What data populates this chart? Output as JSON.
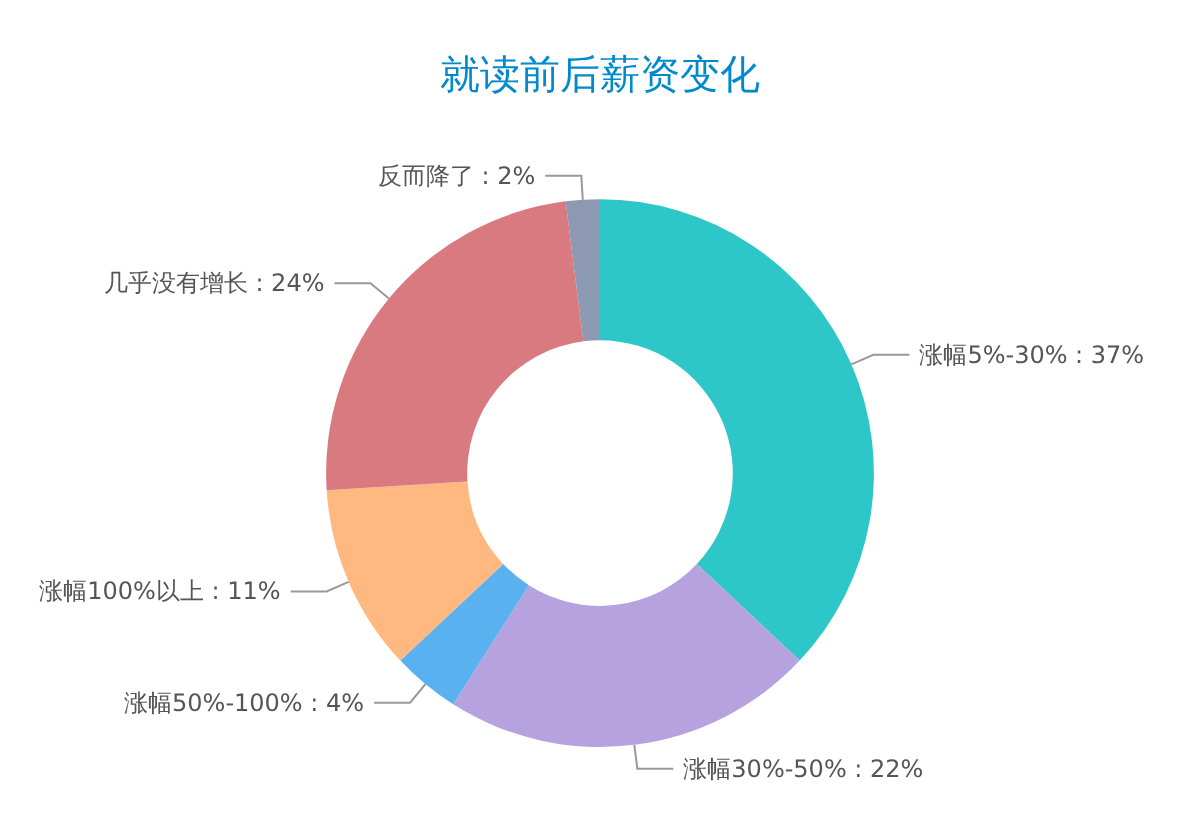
{
  "chart_data": {
    "type": "donut",
    "title": "就读前后薪资变化",
    "categories": [
      "涨幅5%-30%",
      "涨幅30%-50%",
      "涨幅50%-100%",
      "涨幅100%以上",
      "几乎没有增长",
      "反而降了"
    ],
    "values": [
      37,
      22,
      4,
      11,
      24,
      2
    ],
    "value_labels": [
      "37%",
      "22%",
      "4%",
      "11%",
      "24%",
      "2%"
    ],
    "colors": [
      "#2ec7c9",
      "#b6a2de",
      "#5ab1ef",
      "#ffb980",
      "#d87a80",
      "#8d98b3"
    ],
    "legend": false
  }
}
